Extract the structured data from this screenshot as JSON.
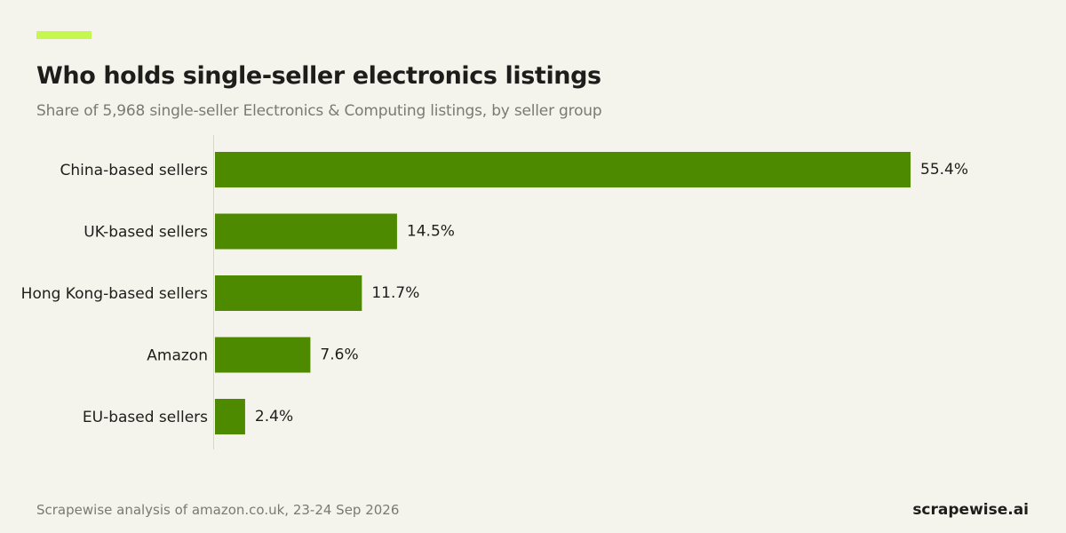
{
  "header": {
    "title": "Who holds single-seller electronics listings",
    "subtitle": "Share of 5,968 single-seller Electronics & Computing listings, by seller group"
  },
  "colors": {
    "accent": "#c5f74f",
    "bar": "#4e8a00",
    "background": "#f5f4ec",
    "axis": "#d8d6cc"
  },
  "chart_data": {
    "type": "bar",
    "orientation": "horizontal",
    "categories": [
      "China-based sellers",
      "UK-based sellers",
      "Hong Kong-based sellers",
      "Amazon",
      "EU-based sellers"
    ],
    "values": [
      55.4,
      14.5,
      11.7,
      7.6,
      2.4
    ],
    "labels": [
      "55.4%",
      "14.5%",
      "11.7%",
      "7.6%",
      "2.4%"
    ],
    "title": "Who holds single-seller electronics listings",
    "subtitle": "Share of 5,968 single-seller Electronics & Computing listings, by seller group",
    "xlim": [
      0,
      55.4
    ],
    "grid": false,
    "legend": "none"
  },
  "footer": {
    "source": "Scrapewise analysis of amazon.co.uk, 23-24 Sep 2026",
    "brand": "scrapewise.ai"
  }
}
